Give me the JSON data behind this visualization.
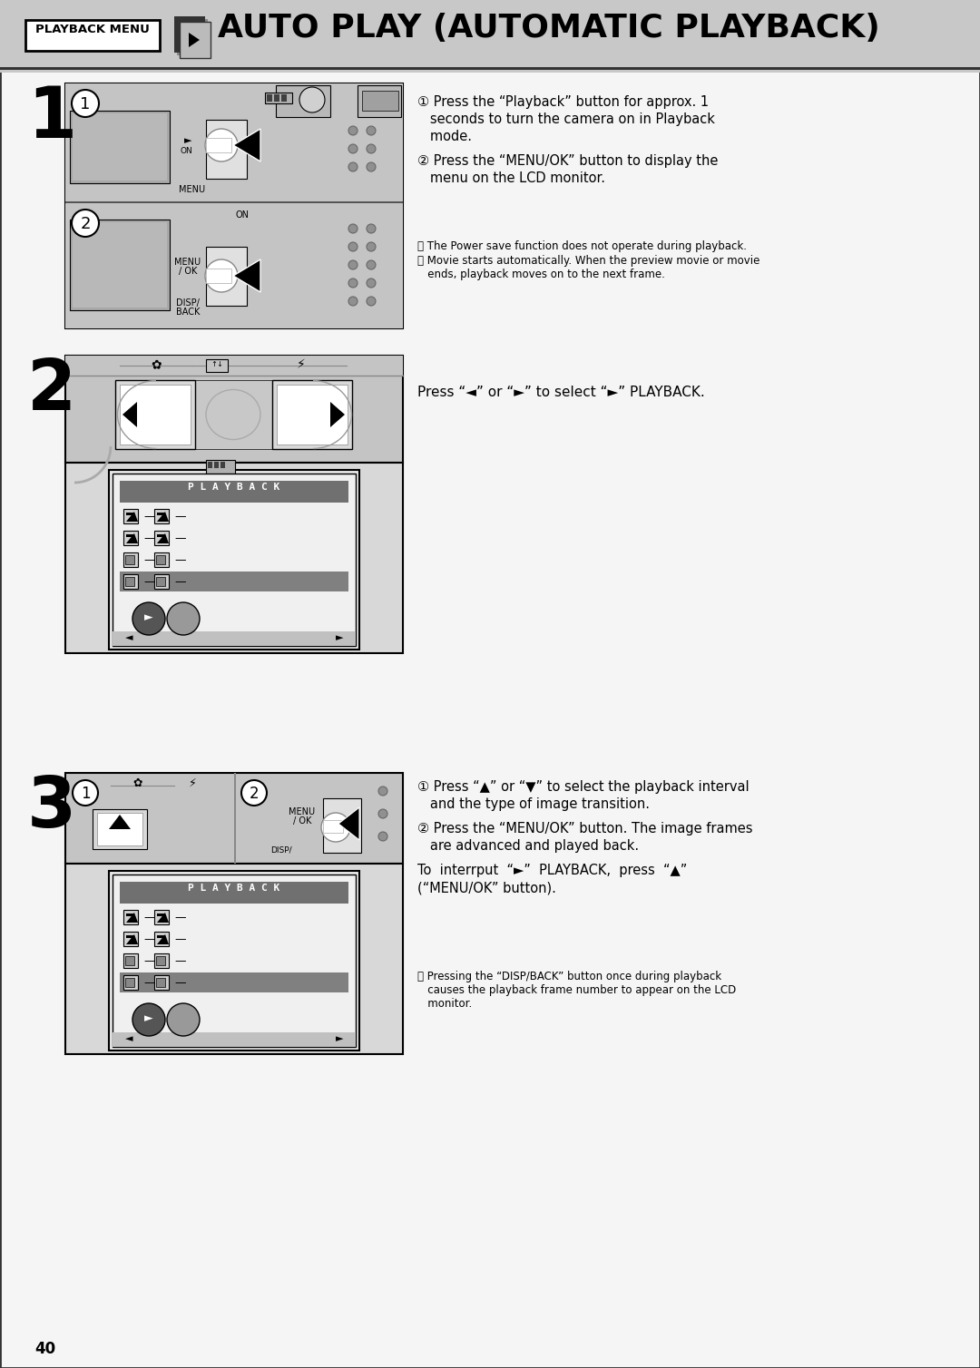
{
  "bg_color": "#ffffff",
  "header_bg": "#c8c8c8",
  "header_text": "AUTO PLAY (AUTOMATIC PLAYBACK)",
  "header_badge": "PLAYBACK MENU",
  "page_number": "40",
  "step1_text1_lines": [
    "① Press the “Playback” button for approx. 1",
    "   seconds to turn the camera on in Playback",
    "   mode."
  ],
  "step1_text2_lines": [
    "② Press the “MENU/OK” button to display the",
    "   menu on the LCD monitor."
  ],
  "step1_note1": "Ⓝ The Power save function does not operate during playback.",
  "step1_note2_lines": [
    "Ⓝ Movie starts automatically. When the preview movie or movie",
    "   ends, playback moves on to the next frame."
  ],
  "step2_text": "Press “◄” or “►” to select “►” PLAYBACK.",
  "step3_text1_lines": [
    "① Press “▲” or “▼” to select the playback interval",
    "   and the type of image transition."
  ],
  "step3_text2_lines": [
    "② Press the “MENU/OK” button. The image frames",
    "   are advanced and played back."
  ],
  "step3_text3_lines": [
    "To  interrput  “►”  PLAYBACK,  press  “▲”",
    "(“MENU/OK” button)."
  ],
  "step3_note_lines": [
    "Ⓝ Pressing the “DISP/BACK” button once during playback",
    "   causes the playback frame number to appear on the LCD",
    "   monitor."
  ],
  "gray_light": "#c8c8c8",
  "gray_mid": "#b0b0b0",
  "gray_dark": "#888888",
  "cam_bg": "#c0c0c0",
  "cam_dark_stripe": "#a0a0a0",
  "screen_bg": "#d0d0d0",
  "lcd_bg": "#e8e8e8",
  "menu_header_bg": "#808080",
  "menu_highlight": "#909090",
  "dot_color": "#909090"
}
